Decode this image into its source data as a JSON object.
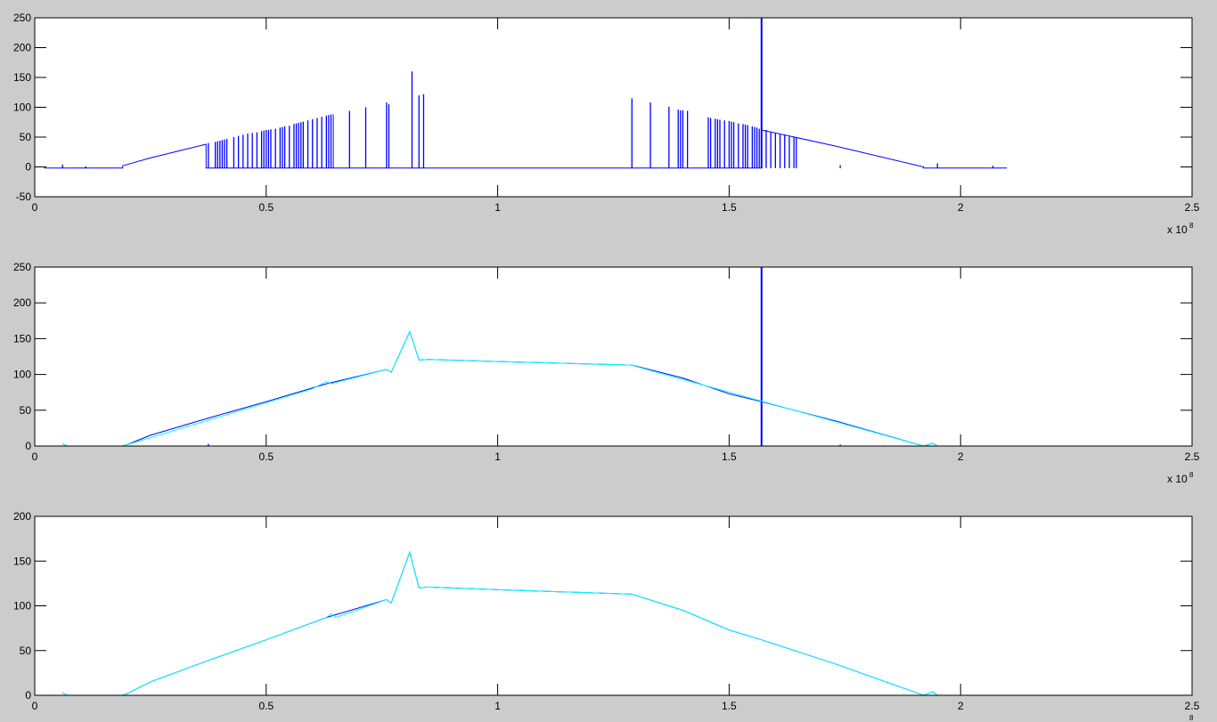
{
  "colors": {
    "background": "#cccccc",
    "axes": "#ffffff",
    "blue": "#0000ff",
    "cyan": "#00ffff"
  },
  "chart_data": [
    {
      "type": "line",
      "xlim": [
        0,
        2.5
      ],
      "ylim": [
        -50,
        250
      ],
      "xticks": [
        "0",
        "0.5",
        "1",
        "1.5",
        "2",
        "2.5"
      ],
      "yticks": [
        "-50",
        "0",
        "50",
        "100",
        "150",
        "200",
        "250"
      ],
      "x_exponent_label": "x 10",
      "x_exponent": "8",
      "grid": false,
      "series": [
        {
          "color": "blue",
          "points": [
            [
              0.02,
              -2
            ],
            [
              0.19,
              -2
            ],
            [
              0.19,
              2
            ],
            [
              0.25,
              15
            ],
            [
              0.37,
              38
            ],
            [
              0.37,
              -2
            ],
            [
              0.645,
              -2
            ],
            [
              0.645,
              88
            ],
            [
              0.645,
              -2
            ],
            [
              1.57,
              -2
            ],
            [
              1.57,
              62
            ],
            [
              1.73,
              35
            ],
            [
              1.92,
              0
            ],
            [
              1.92,
              -2
            ],
            [
              2.1,
              -2
            ]
          ],
          "spikes": [
            [
              0.06,
              4
            ],
            [
              0.11,
              1
            ],
            [
              0.375,
              40
            ],
            [
              0.39,
              42
            ],
            [
              0.395,
              43
            ],
            [
              0.4,
              44
            ],
            [
              0.405,
              45
            ],
            [
              0.41,
              46
            ],
            [
              0.415,
              47
            ],
            [
              0.43,
              50
            ],
            [
              0.44,
              52
            ],
            [
              0.45,
              54
            ],
            [
              0.46,
              56
            ],
            [
              0.47,
              57
            ],
            [
              0.48,
              58
            ],
            [
              0.49,
              60
            ],
            [
              0.495,
              61
            ],
            [
              0.5,
              62
            ],
            [
              0.505,
              62
            ],
            [
              0.51,
              63
            ],
            [
              0.52,
              64
            ],
            [
              0.53,
              66
            ],
            [
              0.535,
              67
            ],
            [
              0.54,
              68
            ],
            [
              0.55,
              69
            ],
            [
              0.56,
              72
            ],
            [
              0.565,
              73
            ],
            [
              0.57,
              74
            ],
            [
              0.575,
              75
            ],
            [
              0.58,
              76
            ],
            [
              0.59,
              78
            ],
            [
              0.6,
              80
            ],
            [
              0.61,
              82
            ],
            [
              0.62,
              84
            ],
            [
              0.63,
              86
            ],
            [
              0.635,
              87
            ],
            [
              0.64,
              88
            ],
            [
              0.68,
              94
            ],
            [
              0.715,
              100
            ],
            [
              0.76,
              108
            ],
            [
              0.765,
              105
            ],
            [
              0.815,
              160
            ],
            [
              0.83,
              120
            ],
            [
              0.84,
              122
            ],
            [
              1.29,
              115
            ],
            [
              1.33,
              108
            ],
            [
              1.37,
              101
            ],
            [
              1.39,
              96
            ],
            [
              1.395,
              95
            ],
            [
              1.4,
              95
            ],
            [
              1.41,
              94
            ],
            [
              1.455,
              83
            ],
            [
              1.46,
              82
            ],
            [
              1.47,
              81
            ],
            [
              1.475,
              80
            ],
            [
              1.48,
              79
            ],
            [
              1.49,
              78
            ],
            [
              1.5,
              77
            ],
            [
              1.505,
              76
            ],
            [
              1.51,
              75
            ],
            [
              1.52,
              73
            ],
            [
              1.53,
              72
            ],
            [
              1.535,
              71
            ],
            [
              1.54,
              70
            ],
            [
              1.55,
              68
            ],
            [
              1.555,
              67
            ],
            [
              1.56,
              66
            ],
            [
              1.565,
              64
            ],
            [
              1.57,
              250
            ],
            [
              1.58,
              62
            ],
            [
              1.59,
              59
            ],
            [
              1.6,
              57
            ],
            [
              1.61,
              55
            ],
            [
              1.62,
              53
            ],
            [
              1.63,
              51
            ],
            [
              1.64,
              50
            ],
            [
              1.645,
              49
            ],
            [
              1.74,
              3
            ],
            [
              1.95,
              6
            ],
            [
              2.07,
              2
            ]
          ]
        }
      ]
    },
    {
      "type": "line",
      "xlim": [
        0,
        2.5
      ],
      "ylim": [
        0,
        250
      ],
      "xticks": [
        "0",
        "0.5",
        "1",
        "1.5",
        "2",
        "2.5"
      ],
      "yticks": [
        "0",
        "50",
        "100",
        "150",
        "200",
        "250"
      ],
      "x_exponent_label": "x 10",
      "x_exponent": "8",
      "grid": false,
      "series": [
        {
          "color": "blue",
          "points": [
            [
              0.06,
              3
            ],
            [
              0.07,
              0
            ],
            [
              0.19,
              0
            ],
            [
              0.2,
              2
            ],
            [
              0.25,
              15
            ],
            [
              0.37,
              38
            ],
            [
              0.5,
              62
            ],
            [
              0.63,
              87
            ],
            [
              0.76,
              107
            ],
            [
              0.77,
              103
            ],
            [
              0.81,
              160
            ],
            [
              0.83,
              120
            ],
            [
              0.85,
              121
            ],
            [
              1.0,
              118
            ],
            [
              1.29,
              113
            ],
            [
              1.4,
              95
            ],
            [
              1.5,
              73
            ],
            [
              1.57,
              62
            ],
            [
              1.73,
              35
            ],
            [
              1.92,
              0
            ],
            [
              1.94,
              4
            ],
            [
              1.95,
              0
            ],
            [
              2.07,
              0
            ]
          ],
          "spikes": [
            [
              0.375,
              3
            ],
            [
              1.57,
              250
            ],
            [
              1.74,
              2
            ]
          ]
        },
        {
          "color": "cyan",
          "points": [
            [
              0.06,
              3
            ],
            [
              0.07,
              0
            ],
            [
              0.19,
              0
            ],
            [
              0.6,
              80
            ],
            [
              0.63,
              90
            ],
            [
              0.64,
              87
            ],
            [
              0.76,
              107
            ],
            [
              0.77,
              103
            ],
            [
              0.81,
              160
            ],
            [
              0.83,
              120
            ],
            [
              0.85,
              121
            ],
            [
              1.0,
              118
            ],
            [
              1.29,
              113
            ],
            [
              1.3,
              111
            ],
            [
              1.92,
              0
            ],
            [
              1.94,
              4
            ],
            [
              1.95,
              0
            ],
            [
              2.07,
              0
            ]
          ],
          "partial": true
        }
      ]
    },
    {
      "type": "line",
      "xlim": [
        0,
        2.5
      ],
      "ylim": [
        0,
        200
      ],
      "xticks": [
        "0",
        "0.5",
        "1",
        "1.5",
        "2",
        "2.5"
      ],
      "yticks": [
        "0",
        "50",
        "100",
        "150",
        "200"
      ],
      "x_exponent": "8",
      "grid": false,
      "series": [
        {
          "color": "blue",
          "points": [
            [
              0.06,
              3
            ],
            [
              0.07,
              0
            ],
            [
              0.19,
              0
            ],
            [
              0.2,
              2
            ],
            [
              0.25,
              15
            ],
            [
              0.37,
              38
            ],
            [
              0.5,
              62
            ],
            [
              0.63,
              87
            ],
            [
              0.76,
              107
            ],
            [
              0.77,
              103
            ],
            [
              0.81,
              160
            ],
            [
              0.83,
              120
            ],
            [
              0.85,
              121
            ],
            [
              1.0,
              118
            ],
            [
              1.29,
              113
            ],
            [
              1.4,
              95
            ],
            [
              1.5,
              73
            ],
            [
              1.57,
              62
            ],
            [
              1.73,
              35
            ],
            [
              1.92,
              0
            ],
            [
              1.94,
              4
            ],
            [
              1.95,
              0
            ],
            [
              2.07,
              0
            ]
          ]
        },
        {
          "color": "cyan",
          "points": [
            [
              0.06,
              3
            ],
            [
              0.07,
              0
            ],
            [
              0.19,
              0
            ],
            [
              0.2,
              2
            ],
            [
              0.25,
              15
            ],
            [
              0.37,
              38
            ],
            [
              0.5,
              62
            ],
            [
              0.63,
              87
            ],
            [
              0.64,
              91
            ],
            [
              0.65,
              87
            ],
            [
              0.76,
              107
            ],
            [
              0.77,
              103
            ],
            [
              0.81,
              160
            ],
            [
              0.83,
              120
            ],
            [
              0.85,
              121
            ],
            [
              1.0,
              118
            ],
            [
              1.29,
              113
            ],
            [
              1.4,
              95
            ],
            [
              1.5,
              73
            ],
            [
              1.57,
              62
            ],
            [
              1.73,
              35
            ],
            [
              1.92,
              0
            ],
            [
              1.94,
              4
            ],
            [
              1.95,
              0
            ],
            [
              2.07,
              0
            ]
          ]
        }
      ]
    }
  ]
}
